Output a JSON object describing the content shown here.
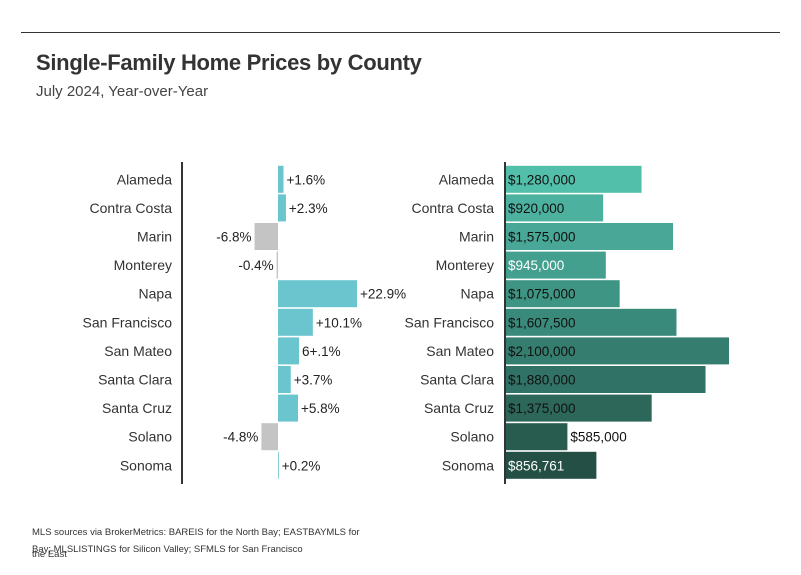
{
  "header": {
    "title": "Single-Family Home Prices by County",
    "subtitle": "July 2024, Year-over-Year"
  },
  "footnote": {
    "line1": "MLS sources via BrokerMetrics: BAREIS for the North Bay; EASTBAYMLS for the East",
    "line2": "Bay; MLSLISTINGS for Silicon Valley; SFMLS for San Francisco"
  },
  "colors": {
    "positive_change": "#6ac5cf",
    "negative_change": "#c4c4c4",
    "price_shades": [
      "#52bfaa",
      "#4db19f",
      "#48a796",
      "#43a08f",
      "#3f9584",
      "#3a8a7b",
      "#357d6f",
      "#307265",
      "#2c6759",
      "#275c4f",
      "#234f44"
    ],
    "axis": "#333333"
  },
  "chart_data": [
    {
      "type": "bar",
      "orientation": "horizontal",
      "categories": [
        "Alameda",
        "Contra Costa",
        "Marin",
        "Monterey",
        "Napa",
        "San Francisco",
        "San Mateo",
        "Santa Clara",
        "Santa Cruz",
        "Solano",
        "Sonoma"
      ],
      "values": [
        1.6,
        2.3,
        -6.8,
        -0.4,
        22.9,
        10.1,
        6.1,
        3.7,
        5.8,
        -4.8,
        0.2
      ],
      "labels": [
        "+1.6%",
        "+2.3%",
        "-6.8%",
        "-0.4%",
        "+22.9%",
        "+10.1%",
        "6+.1%",
        "+3.7%",
        "+5.8%",
        "-4.8%",
        "+0.2%"
      ],
      "xlim": [
        -7.8,
        22.9
      ]
    },
    {
      "type": "bar",
      "orientation": "horizontal",
      "categories": [
        "Alameda",
        "Contra Costa",
        "Marin",
        "Monterey",
        "Napa",
        "San Francisco",
        "San Mateo",
        "Santa Clara",
        "Santa Cruz",
        "Solano",
        "Sonoma"
      ],
      "values": [
        1280000,
        920000,
        1575000,
        945000,
        1075000,
        1607500,
        2100000,
        1880000,
        1375000,
        585000,
        856761
      ],
      "labels": [
        "$1,280,000",
        "$920,000",
        "$1,575,000",
        "$945,000",
        "$1,075,000",
        "$1,607,500",
        "$2,100,000",
        "$1,880,000",
        "$1,375,000",
        "$585,000",
        "$856,761"
      ],
      "xlim": [
        0,
        2100000
      ]
    }
  ]
}
